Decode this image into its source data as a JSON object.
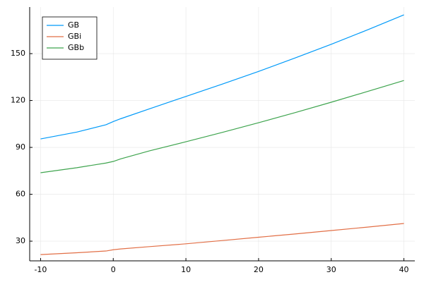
{
  "chart_data": {
    "type": "line",
    "x": [
      -10,
      -5,
      -1,
      0,
      1,
      5,
      10,
      15,
      20,
      25,
      30,
      35,
      40
    ],
    "series": [
      {
        "name": "GB",
        "color": "#009af9",
        "values": [
          95.4,
          99.8,
          104.5,
          106.5,
          108.3,
          114.7,
          122.6,
          130.5,
          138.6,
          147.2,
          156,
          165.2,
          174.8
        ]
      },
      {
        "name": "GBi",
        "color": "#e26f46",
        "values": [
          21.4,
          22.6,
          23.7,
          24.5,
          25,
          26.5,
          28.3,
          30.4,
          32.5,
          34.6,
          36.8,
          39,
          41.3
        ]
      },
      {
        "name": "GBb",
        "color": "#3ea44e",
        "values": [
          73.8,
          77,
          80,
          81,
          82.6,
          87.8,
          93.6,
          99.6,
          105.8,
          112.2,
          118.9,
          125.8,
          132.8
        ]
      }
    ],
    "xlim": [
      -11.5,
      41.5
    ],
    "xticks": [
      -10,
      0,
      10,
      20,
      30,
      40
    ],
    "ylim": [
      17.4,
      179.8
    ],
    "yticks": [
      30,
      60,
      90,
      120,
      150
    ],
    "grid": true,
    "legend": "top-left"
  }
}
